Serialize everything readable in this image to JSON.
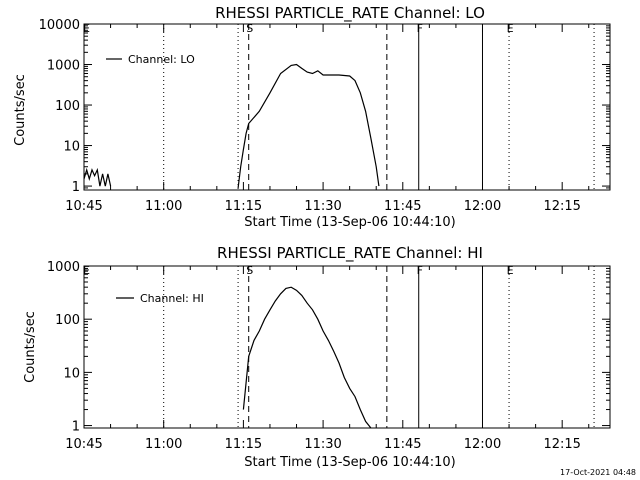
{
  "footer": "17-Oct-2021 04:48",
  "chart_data": [
    {
      "type": "line",
      "title": "RHESSI PARTICLE_RATE Channel: LO",
      "xlabel": "Start Time (13-Sep-06 10:44:10)",
      "ylabel": "Counts/sec",
      "yscale": "log",
      "ylim": [
        0.8,
        10000
      ],
      "xlim": [
        "10:45",
        "12:24"
      ],
      "xticks": [
        "10:45",
        "11:00",
        "11:15",
        "11:30",
        "11:45",
        "12:00",
        "12:15"
      ],
      "yticks": [
        "1",
        "10",
        "100",
        "1000",
        "10000"
      ],
      "legend": {
        "position": "top-left",
        "entries": [
          "Channel: LO"
        ]
      },
      "grid": false,
      "vlines": [
        {
          "x": "11:00",
          "style": "dotted"
        },
        {
          "x": "11:14",
          "style": "dotted"
        },
        {
          "x": "11:16",
          "style": "dashed",
          "label": "S"
        },
        {
          "x": "11:42",
          "style": "dashed"
        },
        {
          "x": "11:48",
          "style": "solid",
          "label": "F"
        },
        {
          "x": "12:00",
          "style": "solid"
        },
        {
          "x": "12:05",
          "style": "dotted",
          "label": "E"
        },
        {
          "x": "12:21",
          "style": "dotted"
        }
      ],
      "corner_marker": "E",
      "series": [
        {
          "name": "Channel: LO",
          "segments": [
            [
              [
                "10:45",
                1.5
              ],
              [
                "10:45.5",
                2.5
              ],
              [
                "10:46",
                1.5
              ],
              [
                "10:46.5",
                2.5
              ],
              [
                "10:47",
                1.8
              ],
              [
                "10:47.5",
                2.5
              ],
              [
                "10:48",
                1.0
              ],
              [
                "10:48.5",
                2
              ],
              [
                "10:49",
                1.0
              ],
              [
                "10:49.5",
                2
              ],
              [
                "10:50",
                1.0
              ]
            ],
            [
              [
                "11:14",
                0.9
              ],
              [
                "11:14.5",
                3
              ],
              [
                "11:15",
                8
              ],
              [
                "11:15.5",
                20
              ],
              [
                "11:16",
                35
              ],
              [
                "11:18",
                70
              ],
              [
                "11:20",
                200
              ],
              [
                "11:22",
                600
              ],
              [
                "11:24",
                950
              ],
              [
                "11:25",
                1000
              ],
              [
                "11:26",
                800
              ],
              [
                "11:27",
                650
              ],
              [
                "11:28",
                600
              ],
              [
                "11:29",
                700
              ],
              [
                "11:30",
                550
              ],
              [
                "11:33",
                550
              ],
              [
                "11:35",
                520
              ],
              [
                "11:36",
                400
              ],
              [
                "11:37",
                200
              ],
              [
                "11:38",
                70
              ],
              [
                "11:39",
                15
              ],
              [
                "11:40",
                3
              ],
              [
                "11:40.5",
                1.0
              ]
            ]
          ]
        }
      ]
    },
    {
      "type": "line",
      "title": "RHESSI PARTICLE_RATE Channel: HI",
      "xlabel": "Start Time (13-Sep-06 10:44:10)",
      "ylabel": "Counts/sec",
      "yscale": "log",
      "ylim": [
        0.9,
        1000
      ],
      "xlim": [
        "10:45",
        "12:24"
      ],
      "xticks": [
        "10:45",
        "11:00",
        "11:15",
        "11:30",
        "11:45",
        "12:00",
        "12:15"
      ],
      "yticks": [
        "1",
        "10",
        "100",
        "1000"
      ],
      "legend": {
        "position": "top-left",
        "entries": [
          "Channel: HI"
        ]
      },
      "grid": false,
      "vlines": [
        {
          "x": "11:00",
          "style": "dotted"
        },
        {
          "x": "11:14",
          "style": "dotted"
        },
        {
          "x": "11:16",
          "style": "dashed",
          "label": "S"
        },
        {
          "x": "11:42",
          "style": "dashed"
        },
        {
          "x": "11:48",
          "style": "solid",
          "label": "F"
        },
        {
          "x": "12:00",
          "style": "solid"
        },
        {
          "x": "12:05",
          "style": "dotted",
          "label": "E"
        },
        {
          "x": "12:21",
          "style": "dotted"
        }
      ],
      "corner_marker": "E",
      "series": [
        {
          "name": "Channel: HI",
          "segments": [
            [
              [
                "11:15",
                2
              ],
              [
                "11:16",
                20
              ],
              [
                "11:17",
                40
              ],
              [
                "11:18",
                60
              ],
              [
                "11:19",
                100
              ],
              [
                "11:20",
                150
              ],
              [
                "11:21",
                220
              ],
              [
                "11:22",
                300
              ],
              [
                "11:23",
                380
              ],
              [
                "11:24",
                400
              ],
              [
                "11:25",
                350
              ],
              [
                "11:26",
                280
              ],
              [
                "11:27",
                200
              ],
              [
                "11:28",
                150
              ],
              [
                "11:29",
                100
              ],
              [
                "11:30",
                60
              ],
              [
                "11:31",
                40
              ],
              [
                "11:32",
                25
              ],
              [
                "11:33",
                15
              ],
              [
                "11:34",
                8
              ],
              [
                "11:35",
                5
              ],
              [
                "11:36",
                3.5
              ],
              [
                "11:37",
                2
              ],
              [
                "11:38",
                1.2
              ],
              [
                "11:39",
                0.9
              ]
            ]
          ]
        }
      ]
    }
  ]
}
